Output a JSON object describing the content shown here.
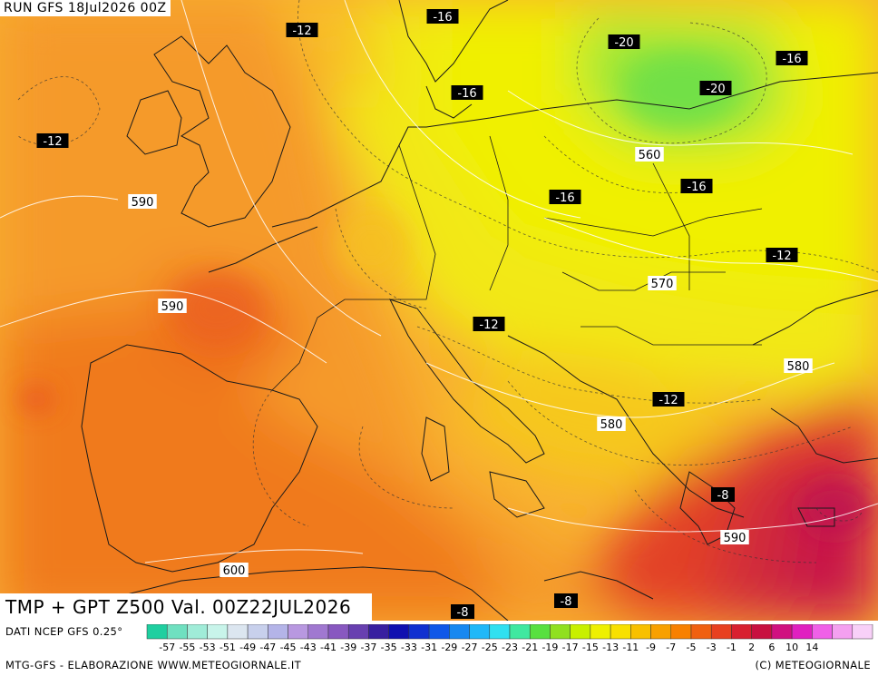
{
  "header": {
    "run_text": "RUN GFS 18Jul2026 00Z"
  },
  "title": {
    "text": "TMP + GPT Z500 Val. 00Z22JUL2026"
  },
  "footer": {
    "source_text": "DATI NCEP GFS 0.25°",
    "credit_text": "MTG-GFS - ELABORAZIONE WWW.METEOGIORNALE.IT",
    "copyright_text": "(C) METEOGIORNALE"
  },
  "legend": {
    "values": [
      "-57",
      "-55",
      "-53",
      "-51",
      "-49",
      "-47",
      "-45",
      "-43",
      "-41",
      "-39",
      "-37",
      "-35",
      "-33",
      "-31",
      "-29",
      "-27",
      "-25",
      "-23",
      "-21",
      "-19",
      "-17",
      "-15",
      "-13",
      "-11",
      "-9",
      "-7",
      "-5",
      "-3",
      "-1",
      "2",
      "6",
      "10",
      "14"
    ],
    "colors": [
      "#1fcfa0",
      "#6fe0c0",
      "#a0ecd8",
      "#c8f4ea",
      "#dce6f0",
      "#c8d0ec",
      "#b4b4e8",
      "#b898e0",
      "#a078d0",
      "#8858c0",
      "#6840b0",
      "#3820a0",
      "#1010b0",
      "#1030d0",
      "#1058e8",
      "#1888f0",
      "#20b8f8",
      "#30e0f0",
      "#40e8a0",
      "#58e040",
      "#90e020",
      "#c8f000",
      "#eef000",
      "#f8e000",
      "#f8c000",
      "#f8a000",
      "#f88000",
      "#f06010",
      "#e84020",
      "#d82030",
      "#c81040",
      "#d01080",
      "#e020c0",
      "#f060e8",
      "#f4a0f0",
      "#f8d0f8"
    ]
  },
  "temperature_labels": [
    {
      "text": "-16"
    },
    {
      "text": "-12"
    },
    {
      "text": "-12"
    },
    {
      "text": "-16"
    },
    {
      "text": "-20"
    },
    {
      "text": "-16"
    },
    {
      "text": "-20"
    },
    {
      "text": "-16"
    },
    {
      "text": "-16"
    },
    {
      "text": "-12"
    },
    {
      "text": "-12"
    },
    {
      "text": "-12"
    },
    {
      "text": "-8"
    },
    {
      "text": "-8"
    },
    {
      "text": "-8"
    }
  ],
  "geopotential_labels": [
    {
      "text": "590"
    },
    {
      "text": "590"
    },
    {
      "text": "560"
    },
    {
      "text": "570"
    },
    {
      "text": "580"
    },
    {
      "text": "580"
    },
    {
      "text": "590"
    },
    {
      "text": "600"
    }
  ],
  "colors": {
    "warm_orange": "#f07020",
    "orange": "#f8a030",
    "yellow": "#f0f000",
    "green": "#90e040",
    "hot_red": "#d02040",
    "magenta": "#c81848"
  }
}
